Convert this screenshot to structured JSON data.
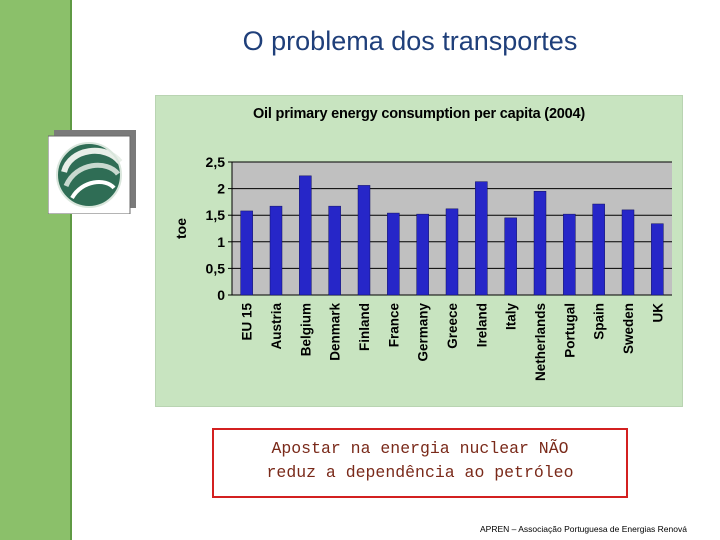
{
  "slide": {
    "title": "O problema dos transportes",
    "callout_line1": "Apostar na energia nuclear NÃO",
    "callout_line2": "reduz a dependência ao petróleo",
    "footer": "APREN – Associação Portuguesa de Energias Renová"
  },
  "colors": {
    "sidebar": "#8bc06a",
    "title": "#1f3f7a",
    "bar": "#2626c8",
    "plot_bg": "#c0c0c0",
    "chart_bg": "#c8e4c0",
    "callout_border": "#d32020"
  },
  "logo": {
    "icon": "swirl-logo-icon"
  },
  "chart_data": {
    "type": "bar",
    "title": "Oil primary energy consumption per capita (2004)",
    "xlabel": "",
    "ylabel": "toe",
    "categories": [
      "EU 15",
      "Austria",
      "Belgium",
      "Denmark",
      "Finland",
      "France",
      "Germany",
      "Greece",
      "Ireland",
      "Italy",
      "Netherlands",
      "Portugal",
      "Spain",
      "Sweden",
      "UK"
    ],
    "values": [
      1.58,
      1.67,
      2.24,
      1.67,
      2.06,
      1.54,
      1.52,
      1.62,
      2.13,
      1.45,
      1.95,
      1.52,
      1.71,
      1.6,
      1.34
    ],
    "yticks": [
      "0",
      "0,5",
      "1",
      "1,5",
      "2",
      "2,5"
    ],
    "ylim": [
      0,
      2.5
    ],
    "grid": true,
    "legend": "none"
  }
}
